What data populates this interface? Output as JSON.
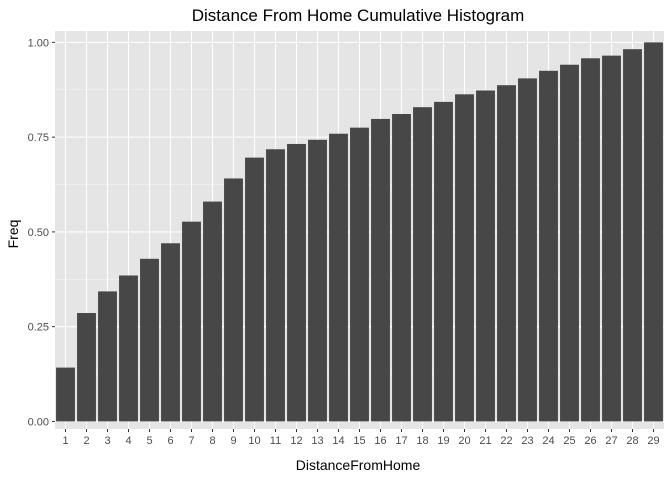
{
  "chart_data": {
    "type": "bar",
    "title": "Distance From Home Cumulative Histogram",
    "xlabel": "DistanceFromHome",
    "ylabel": "Freq",
    "categories": [
      "1",
      "2",
      "3",
      "4",
      "5",
      "6",
      "7",
      "8",
      "9",
      "10",
      "11",
      "12",
      "13",
      "14",
      "15",
      "16",
      "17",
      "18",
      "19",
      "20",
      "21",
      "22",
      "23",
      "24",
      "25",
      "26",
      "27",
      "28",
      "29"
    ],
    "values": [
      0.142,
      0.286,
      0.343,
      0.385,
      0.429,
      0.47,
      0.527,
      0.58,
      0.641,
      0.696,
      0.718,
      0.732,
      0.743,
      0.759,
      0.775,
      0.798,
      0.811,
      0.829,
      0.843,
      0.863,
      0.873,
      0.887,
      0.905,
      0.925,
      0.941,
      0.958,
      0.965,
      0.982,
      1.0
    ],
    "ylim": [
      -0.02,
      1.03
    ],
    "y_ticks": [
      0,
      0.25,
      0.5,
      0.75,
      1.0
    ],
    "y_tick_labels": [
      "0.00",
      "0.25",
      "0.50",
      "0.75",
      "1.00"
    ],
    "grid": true,
    "colors": {
      "panel_background": "#e5e5e5",
      "grid_major": "#ffffff",
      "bar_fill": "#474747",
      "tick_color": "#333333"
    }
  }
}
